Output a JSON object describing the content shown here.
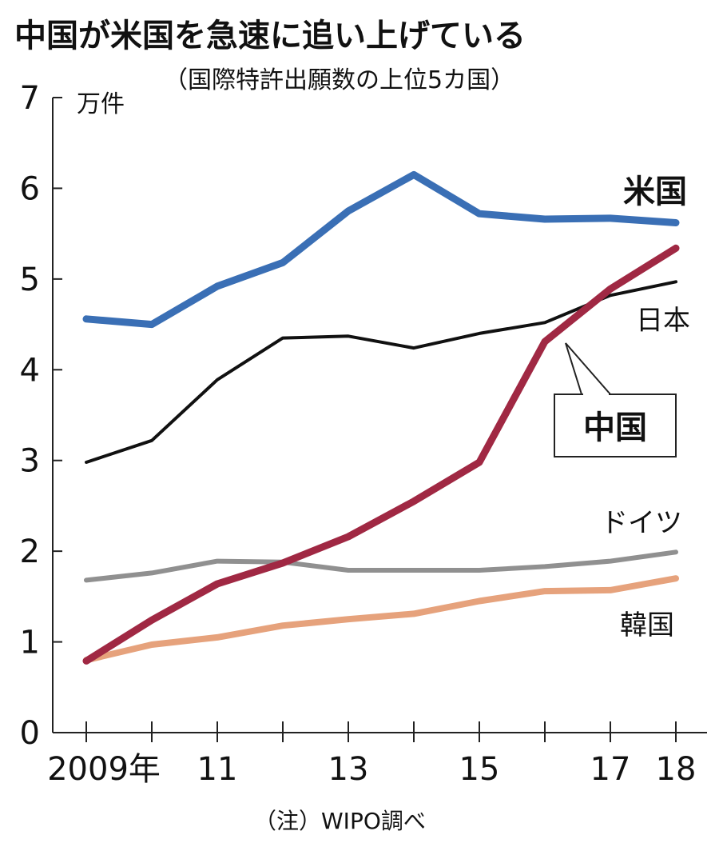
{
  "title": "中国が米国を急速に追い上げている",
  "subtitle": "（国際特許出願数の上位5カ国）",
  "note": "（注）WIPO調べ",
  "chart_data": {
    "type": "line",
    "ylabel": "万件",
    "ylim": [
      0,
      7
    ],
    "yticks": [
      "0",
      "1",
      "2",
      "3",
      "4",
      "5",
      "6",
      "7"
    ],
    "x": [
      2009,
      2010,
      2011,
      2012,
      2013,
      2014,
      2015,
      2016,
      2017,
      2018
    ],
    "xtick_labels": [
      {
        "x": 2009,
        "label": "2009年"
      },
      {
        "x": 2011,
        "label": "11"
      },
      {
        "x": 2013,
        "label": "13"
      },
      {
        "x": 2015,
        "label": "15"
      },
      {
        "x": 2017,
        "label": "17"
      },
      {
        "x": 2018,
        "label": "18"
      }
    ],
    "grid": false,
    "series": [
      {
        "name": "米国",
        "color": "#3a6fb5",
        "emphasis": true,
        "values": [
          4.56,
          4.5,
          4.92,
          5.18,
          5.75,
          6.15,
          5.72,
          5.66,
          5.67,
          5.62
        ]
      },
      {
        "name": "日本",
        "color": "#111111",
        "emphasis": false,
        "values": [
          2.98,
          3.22,
          3.89,
          4.35,
          4.37,
          4.24,
          4.4,
          4.52,
          4.82,
          4.97
        ]
      },
      {
        "name": "中国",
        "color": "#a02843",
        "emphasis": true,
        "values": [
          0.79,
          1.24,
          1.64,
          1.87,
          2.16,
          2.55,
          2.98,
          4.31,
          4.89,
          5.34
        ]
      },
      {
        "name": "ドイツ",
        "color": "#909090",
        "emphasis": false,
        "values": [
          1.68,
          1.76,
          1.89,
          1.88,
          1.79,
          1.79,
          1.79,
          1.83,
          1.89,
          1.99
        ]
      },
      {
        "name": "韓国",
        "color": "#e6a27c",
        "emphasis": false,
        "values": [
          0.8,
          0.97,
          1.05,
          1.18,
          1.25,
          1.31,
          1.45,
          1.56,
          1.57,
          1.7
        ]
      }
    ]
  }
}
